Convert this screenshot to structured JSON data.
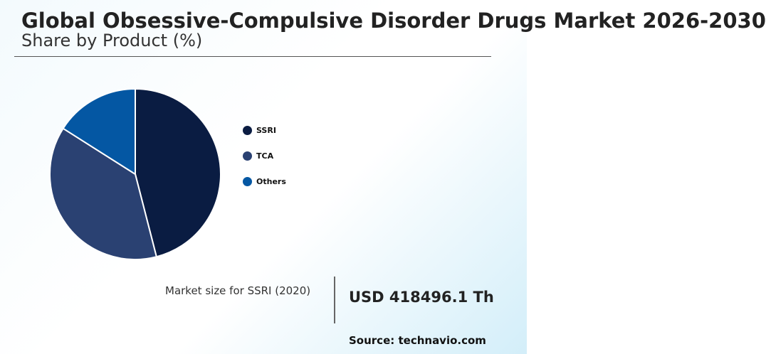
{
  "title": "Global Obsessive-Compulsive Disorder Drugs Market 2026-2030",
  "subtitle": "Share by Product (%)",
  "chart_data": {
    "type": "pie",
    "categories": [
      "SSRI",
      "TCA",
      "Others"
    ],
    "values": [
      46,
      38,
      16
    ],
    "colors": [
      "#0a1c42",
      "#2a4172",
      "#0457a3"
    ],
    "legend_position": "right"
  },
  "kpi": {
    "label": "Market size for SSRI (2020)",
    "value": "USD 418496.1 Th"
  },
  "source": "Source: technavio.com"
}
